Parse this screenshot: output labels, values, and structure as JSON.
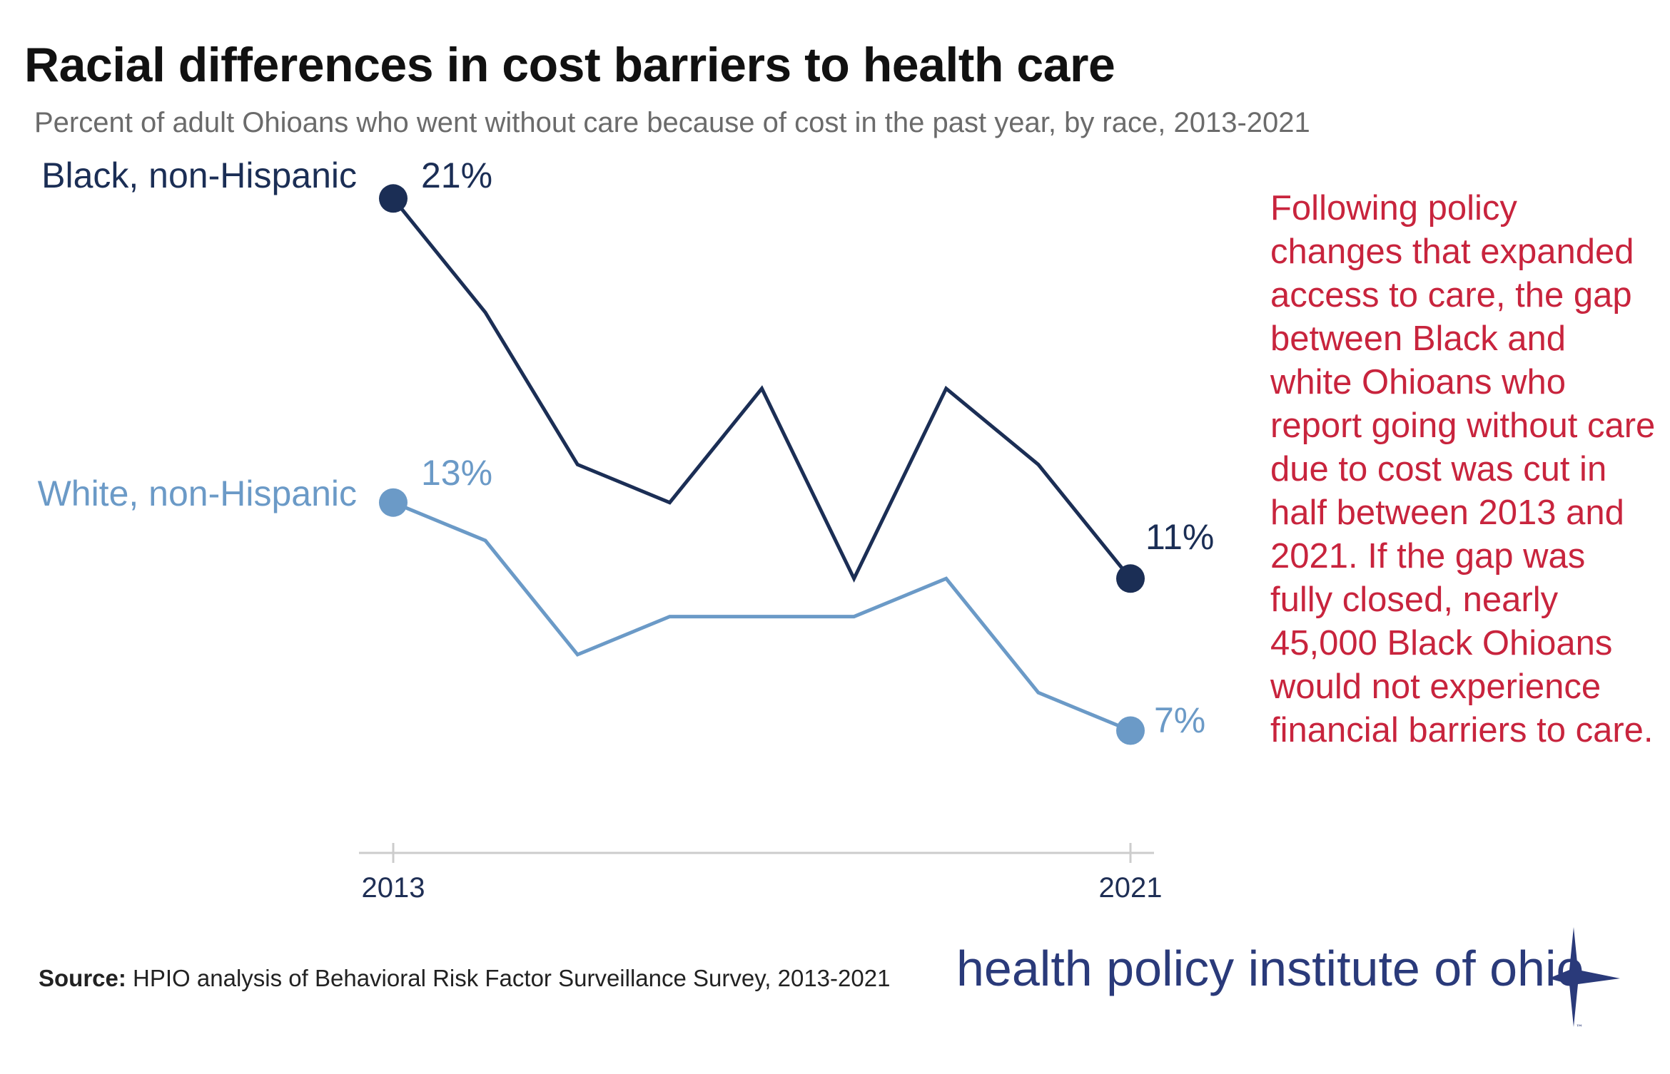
{
  "title": "Racial differences in cost barriers to health care",
  "subtitle": "Percent of adult Ohioans who went without care because of cost in the past year, by race, 2013-2021",
  "annotation": "Following policy changes that expanded access to care, the gap between Black and white Ohioans who report going without care due to cost was cut in half between 2013 and 2021. If the gap was fully closed, nearly 45,000 Black Ohioans would not experience financial barriers to care.",
  "source": {
    "label": "Source:",
    "text": "HPIO analysis of Behavioral Risk Factor Surveillance Survey, 2013-2021"
  },
  "logo": {
    "text": "health policy institute of ohio",
    "tm": "™"
  },
  "colors": {
    "black_series": "#1b2e55",
    "white_series": "#6b9ac7",
    "annotation": "#c8243d",
    "axis": "#cccccc"
  },
  "chart_data": {
    "type": "line",
    "x": [
      2013,
      2014,
      2015,
      2016,
      2017,
      2018,
      2019,
      2020,
      2021
    ],
    "x_tick_labels": [
      "2013",
      "2021"
    ],
    "ylim": [
      0,
      22
    ],
    "grid": false,
    "series": [
      {
        "name": "Black, non-Hispanic",
        "values": [
          21,
          18,
          14,
          13,
          16,
          11,
          16,
          14,
          11
        ],
        "color": "#1b2e55",
        "start_label": "21%",
        "end_label": "11%"
      },
      {
        "name": "White, non-Hispanic",
        "values": [
          13,
          12,
          9,
          10,
          10,
          10,
          11,
          8,
          7
        ],
        "color": "#6b9ac7",
        "start_label": "13%",
        "end_label": "7%"
      }
    ]
  }
}
